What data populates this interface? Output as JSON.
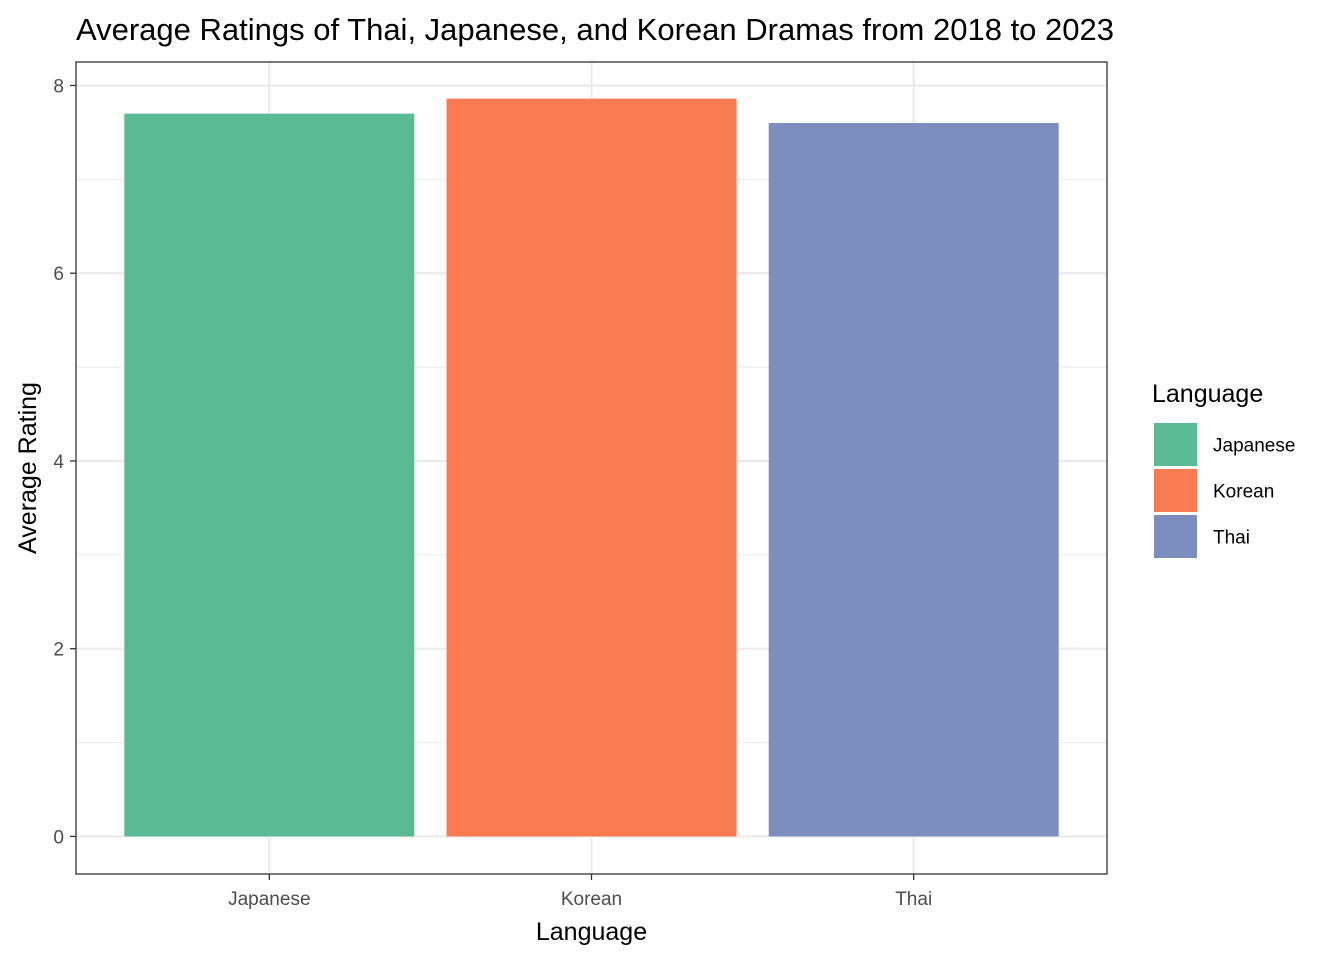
{
  "chart_data": {
    "type": "bar",
    "title": "Average Ratings of Thai, Japanese, and Korean Dramas from 2018 to 2023",
    "xlabel": "Language",
    "ylabel": "Average Rating",
    "categories": [
      "Japanese",
      "Korean",
      "Thai"
    ],
    "values": [
      7.7,
      7.86,
      7.6
    ],
    "colors": [
      "#59BA93",
      "#F87B52",
      "#7C8EBE"
    ],
    "ylim": [
      -0.4,
      8.25
    ],
    "yticks": [
      0,
      2,
      4,
      6,
      8
    ],
    "grid": true,
    "legend": {
      "title": "Language",
      "placement": "right",
      "items": [
        "Japanese",
        "Korean",
        "Thai"
      ]
    }
  }
}
